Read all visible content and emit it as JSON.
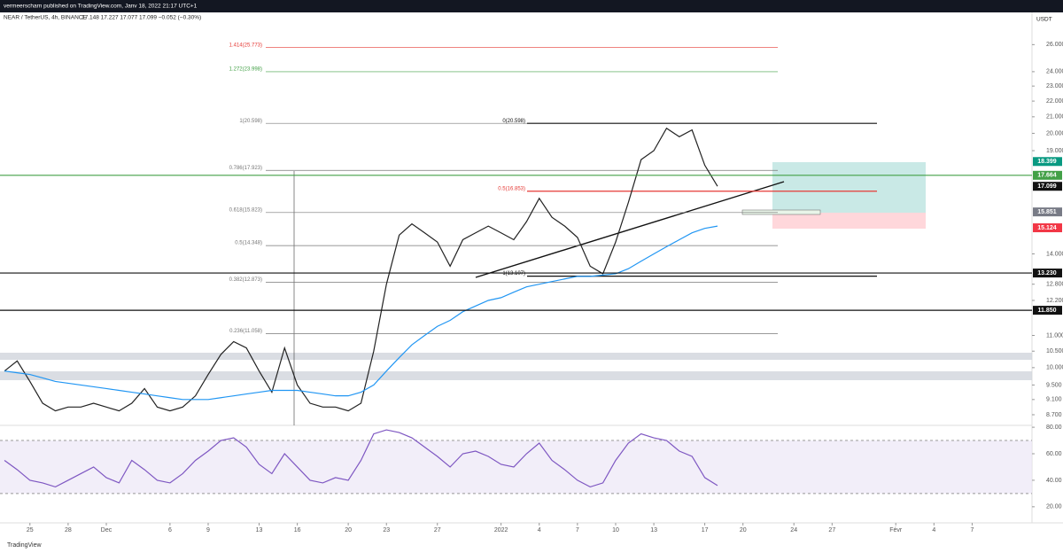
{
  "header": {
    "publisher": "vermeerscharn published on TradingView.com, Janv 18, 2022 21:17 UTC+1",
    "symbol": "NEAR / TetherUS, 4h, BINANCE",
    "ohlc": "17.148  17.227  17.077  17.099  −0.052 (−0.30%)",
    "currency": "USDT",
    "footer": "TradingView"
  },
  "chart_data": [
    {
      "type": "line",
      "log_scale": true,
      "ylim": [
        8.43,
        28.6
      ],
      "xlim": [
        -1.35,
        79.7
      ],
      "yticks": [
        {
          "value": 26,
          "label": "26.000"
        },
        {
          "value": 24,
          "label": "24.000"
        },
        {
          "value": 23,
          "label": "23.000"
        },
        {
          "value": 22,
          "label": "22.000"
        },
        {
          "value": 21,
          "label": "21.000"
        },
        {
          "value": 20,
          "label": "20.000"
        },
        {
          "value": 19,
          "label": "19.000"
        },
        {
          "value": 14,
          "label": "14.000"
        },
        {
          "value": 12.8,
          "label": "12.800"
        },
        {
          "value": 12.2,
          "label": "12.200"
        },
        {
          "value": 11,
          "label": "11.000"
        },
        {
          "value": 10.5,
          "label": "10.500"
        },
        {
          "value": 10,
          "label": "10.000"
        },
        {
          "value": 9.5,
          "label": "9.500"
        },
        {
          "value": 9.1,
          "label": "9.100"
        },
        {
          "value": 8.7,
          "label": "8.700"
        }
      ],
      "xticks": [
        {
          "value": 1,
          "label": "25"
        },
        {
          "value": 4,
          "label": "28"
        },
        {
          "value": 7,
          "label": "Dec"
        },
        {
          "value": 12,
          "label": "6"
        },
        {
          "value": 15,
          "label": "9"
        },
        {
          "value": 19,
          "label": "13"
        },
        {
          "value": 22,
          "label": "16"
        },
        {
          "value": 26,
          "label": "20"
        },
        {
          "value": 29,
          "label": "23"
        },
        {
          "value": 33,
          "label": "27"
        },
        {
          "value": 38,
          "label": "2022"
        },
        {
          "value": 41,
          "label": "4"
        },
        {
          "value": 44,
          "label": "7"
        },
        {
          "value": 47,
          "label": "10"
        },
        {
          "value": 50,
          "label": "13"
        },
        {
          "value": 54,
          "label": "17"
        },
        {
          "value": 57,
          "label": "20"
        },
        {
          "value": 61,
          "label": "24"
        },
        {
          "value": 64,
          "label": "27"
        },
        {
          "value": 69,
          "label": "Févr"
        },
        {
          "value": 72,
          "label": "4"
        },
        {
          "value": 75,
          "label": "7"
        }
      ],
      "x": [
        -1,
        0,
        1,
        2,
        3,
        4,
        5,
        6,
        7,
        8,
        9,
        10,
        11,
        12,
        13,
        14,
        15,
        16,
        17,
        18,
        19,
        20,
        21,
        22,
        23,
        24,
        25,
        26,
        27,
        28,
        29,
        30,
        31,
        32,
        33,
        34,
        35,
        36,
        37,
        38,
        39,
        40,
        41,
        42,
        43,
        44,
        45,
        46,
        47,
        48,
        49,
        50,
        51,
        52,
        53,
        54,
        55
      ],
      "series": [
        {
          "color": "#222222",
          "values": [
            9.9,
            10.2,
            9.6,
            9.0,
            8.8,
            8.9,
            8.9,
            9.0,
            8.9,
            8.8,
            9.0,
            9.4,
            8.9,
            8.8,
            8.9,
            9.2,
            9.8,
            10.4,
            10.8,
            10.6,
            9.9,
            9.3,
            10.6,
            9.5,
            9.0,
            8.9,
            8.9,
            8.8,
            9.0,
            10.5,
            12.8,
            14.8,
            15.3,
            14.9,
            14.5,
            13.5,
            14.6,
            14.9,
            15.2,
            14.9,
            14.6,
            15.4,
            16.5,
            15.6,
            15.2,
            14.7,
            13.5,
            13.2,
            14.5,
            16.3,
            18.5,
            19.0,
            20.3,
            19.8,
            20.2,
            18.2,
            17.1
          ]
        },
        {
          "color": "#2196f3",
          "values": [
            9.9,
            9.85,
            9.8,
            9.7,
            9.6,
            9.55,
            9.5,
            9.45,
            9.4,
            9.35,
            9.3,
            9.25,
            9.2,
            9.15,
            9.1,
            9.1,
            9.1,
            9.15,
            9.2,
            9.25,
            9.3,
            9.35,
            9.35,
            9.35,
            9.3,
            9.25,
            9.2,
            9.2,
            9.3,
            9.5,
            9.9,
            10.3,
            10.7,
            11.0,
            11.3,
            11.5,
            11.8,
            12.0,
            12.2,
            12.3,
            12.5,
            12.7,
            12.8,
            12.9,
            13.0,
            13.1,
            13.1,
            13.15,
            13.2,
            13.4,
            13.7,
            14.0,
            14.3,
            14.6,
            14.9,
            15.1,
            15.2
          ]
        }
      ],
      "fib_levels": [
        {
          "label": "1.414(25.773)",
          "value": 25.773,
          "color": "#e53935",
          "set": "a"
        },
        {
          "label": "1.272(23.998)",
          "value": 23.998,
          "color": "#43a047",
          "set": "a"
        },
        {
          "label": "1(20.598)",
          "value": 20.598,
          "color": "#777777",
          "set": "a"
        },
        {
          "label": "0.786(17.923)",
          "value": 17.923,
          "color": "#777777",
          "set": "a"
        },
        {
          "label": "0.618(15.823)",
          "value": 15.823,
          "color": "#777777",
          "set": "a"
        },
        {
          "label": "0.5(14.348)",
          "value": 14.348,
          "color": "#777777",
          "set": "a"
        },
        {
          "label": "0.382(12.873)",
          "value": 12.873,
          "color": "#777777",
          "set": "a"
        },
        {
          "label": "0.236(11.058)",
          "value": 11.058,
          "color": "#777777",
          "set": "a"
        },
        {
          "label": "0(20.598)",
          "value": 20.598,
          "color": "#111111",
          "set": "b"
        },
        {
          "label": "0.5(16.853)",
          "value": 16.853,
          "color": "#e53935",
          "set": "b"
        },
        {
          "label": "1(13.107)",
          "value": 13.107,
          "color": "#111111",
          "set": "b"
        }
      ],
      "price_tags": [
        {
          "label": "18.399",
          "value": 18.399,
          "color": "#089981"
        },
        {
          "label": "17.664",
          "value": 17.664,
          "color": "#43a047",
          "line": true
        },
        {
          "label": "17.099",
          "value": 17.099,
          "color": "#111111"
        },
        {
          "label": "15.851",
          "value": 15.851,
          "color": "#787b86"
        },
        {
          "label": "15.124",
          "value": 15.124,
          "color": "#f23645"
        },
        {
          "label": "13.230",
          "value": 13.23,
          "color": "#111111",
          "line": true
        },
        {
          "label": "11.850",
          "value": 11.85,
          "color": "#111111",
          "line": true
        }
      ]
    },
    {
      "type": "line",
      "ylim": [
        11.2,
        81.4
      ],
      "yticks": [
        {
          "value": 80,
          "label": "80.00"
        },
        {
          "value": 60,
          "label": "60.00"
        },
        {
          "value": 40,
          "label": "40.00"
        },
        {
          "value": 20,
          "label": "20.00"
        }
      ],
      "bands": [
        70,
        30
      ],
      "series": [
        {
          "color": "#7e57c2",
          "values": [
            55,
            48,
            40,
            38,
            35,
            40,
            45,
            50,
            42,
            38,
            55,
            48,
            40,
            38,
            45,
            55,
            62,
            70,
            72,
            65,
            52,
            45,
            60,
            50,
            40,
            38,
            42,
            40,
            55,
            75,
            78,
            76,
            72,
            65,
            58,
            50,
            60,
            62,
            58,
            52,
            50,
            60,
            68,
            55,
            48,
            40,
            35,
            38,
            55,
            68,
            75,
            72,
            70,
            62,
            58,
            42,
            36
          ]
        }
      ]
    }
  ]
}
